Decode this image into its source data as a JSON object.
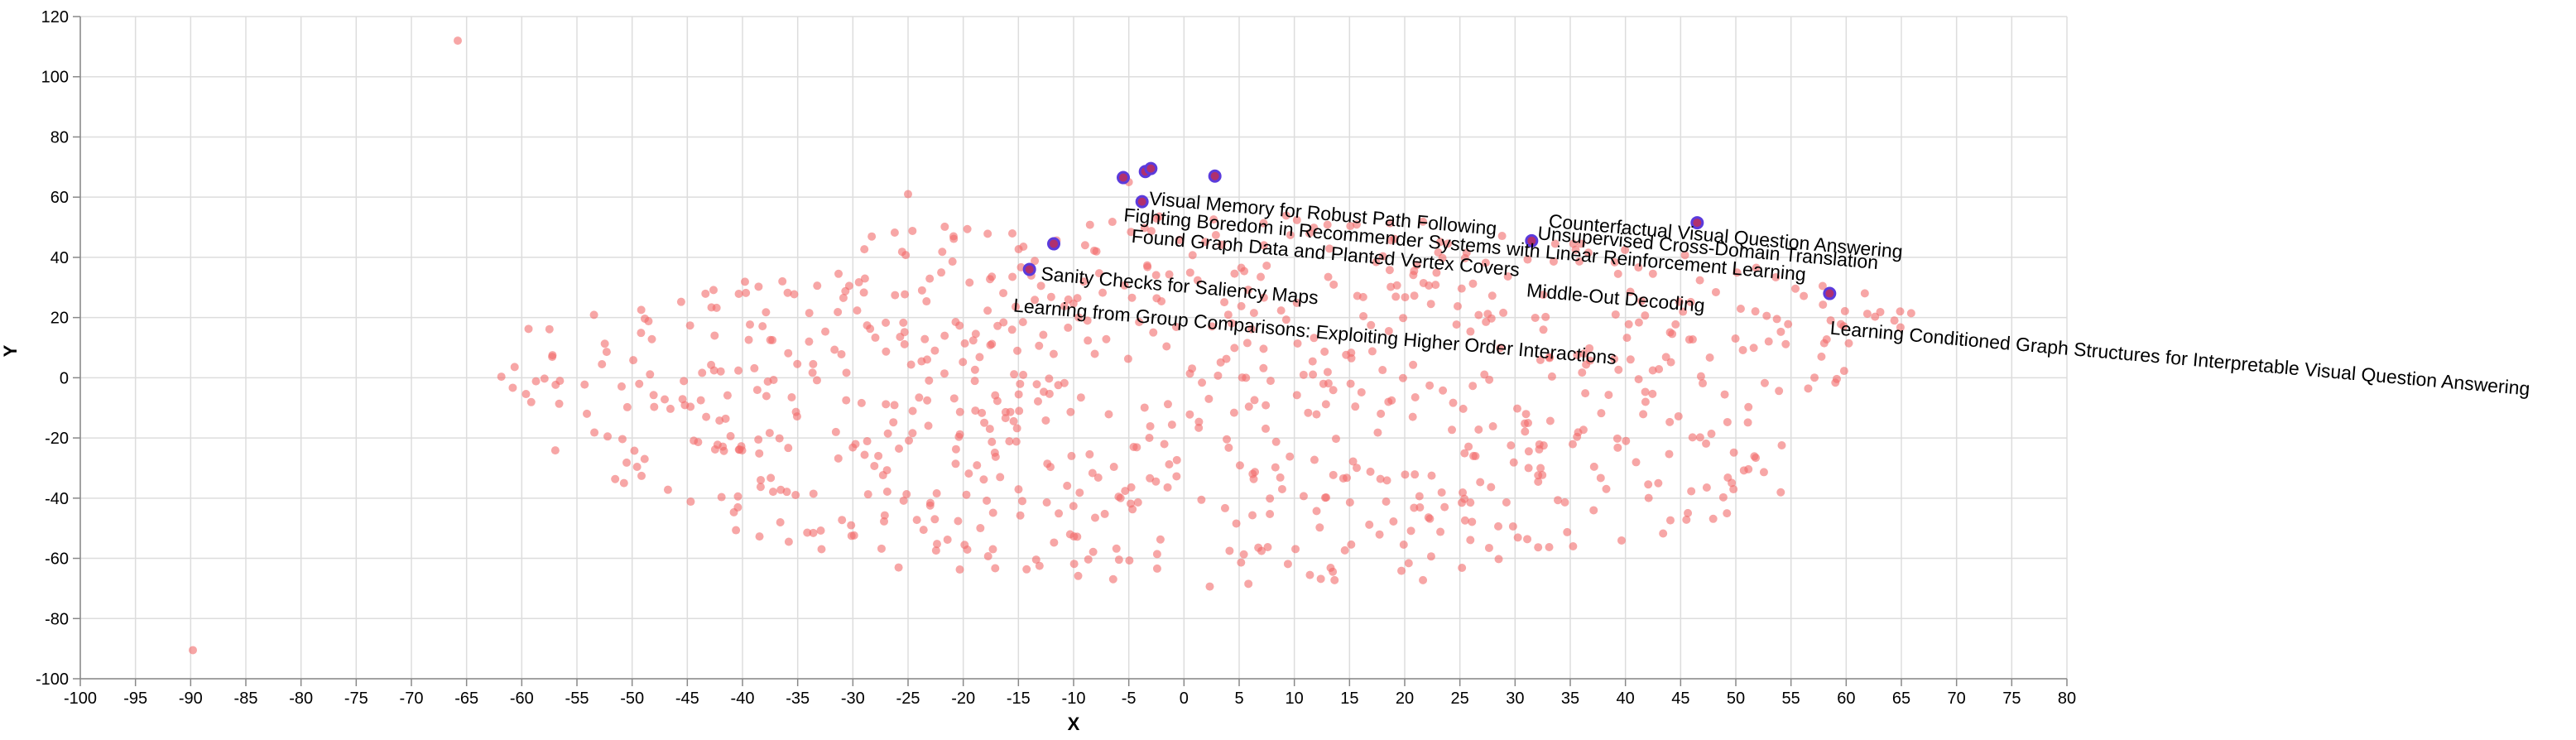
{
  "chart_data": {
    "type": "scatter",
    "xlabel": "X",
    "ylabel": "Y",
    "xlim": [
      -100,
      80
    ],
    "ylim": [
      -100,
      120
    ],
    "xticks": [
      -100,
      -95,
      -90,
      -85,
      -80,
      -75,
      -70,
      -65,
      -60,
      -55,
      -50,
      -45,
      -40,
      -35,
      -30,
      -25,
      -20,
      -15,
      -10,
      -5,
      0,
      5,
      10,
      15,
      20,
      25,
      30,
      35,
      40,
      45,
      50,
      55,
      60,
      65,
      70,
      75,
      80
    ],
    "yticks": [
      -100,
      -80,
      -60,
      -40,
      -20,
      0,
      20,
      40,
      60,
      80,
      100,
      120
    ],
    "grid": true,
    "colors": {
      "background_points": "#f26b6b",
      "highlight_fill": "#b0306e",
      "highlight_stroke": "#5b3bdc",
      "grid": "#dddddd",
      "axis": "#888888"
    },
    "series": [
      {
        "marker": "background",
        "outliers": [
          [
            -65.8,
            112
          ],
          [
            -89.8,
            -90.5
          ],
          [
            -25,
            61
          ],
          [
            3,
            67
          ],
          [
            -5,
            65
          ]
        ],
        "points_note": "",
        "points": []
      },
      {
        "marker": "highlighted",
        "points": [
          {
            "x": -5.5,
            "y": 66.5,
            "label": ""
          },
          {
            "x": -3.5,
            "y": 68.5,
            "label": ""
          },
          {
            "x": -3.0,
            "y": 69.5,
            "label": ""
          },
          {
            "x": 2.8,
            "y": 67.0,
            "label": ""
          },
          {
            "x": -3.8,
            "y": 58.5,
            "label": "Visual Memory for Robust Path Following"
          },
          {
            "x": -11.8,
            "y": 44.5,
            "label": ""
          },
          {
            "x": -14.0,
            "y": 36.0,
            "label": "Sanity Checks for Saliency Maps"
          },
          {
            "x": 31.5,
            "y": 45.5,
            "label": "Middle-Out Decoding"
          },
          {
            "x": 46.5,
            "y": 51.5,
            "label": ""
          },
          {
            "x": 58.5,
            "y": 28.0,
            "label": "Learning Conditioned Graph Structures for Interpretable Visual Question Answering"
          }
        ]
      }
    ],
    "annotations": [
      "Visual Memory for Robust Path Following",
      "Fighting Boredom in Recommender Systems with Linear Reinforcement Learning",
      "Found Graph Data and Planted Vertex Covers",
      "Sanity Checks for Saliency Maps",
      "Learning from Group Comparisons: Exploiting Higher Order Interactions",
      "Middle-Out Decoding",
      "Learning Conditioned Graph Structures for Interpretable Visual Question Answering",
      "Unsupervised Cross-Domain Translation",
      "Counterfactual Visual Question Answering"
    ]
  }
}
